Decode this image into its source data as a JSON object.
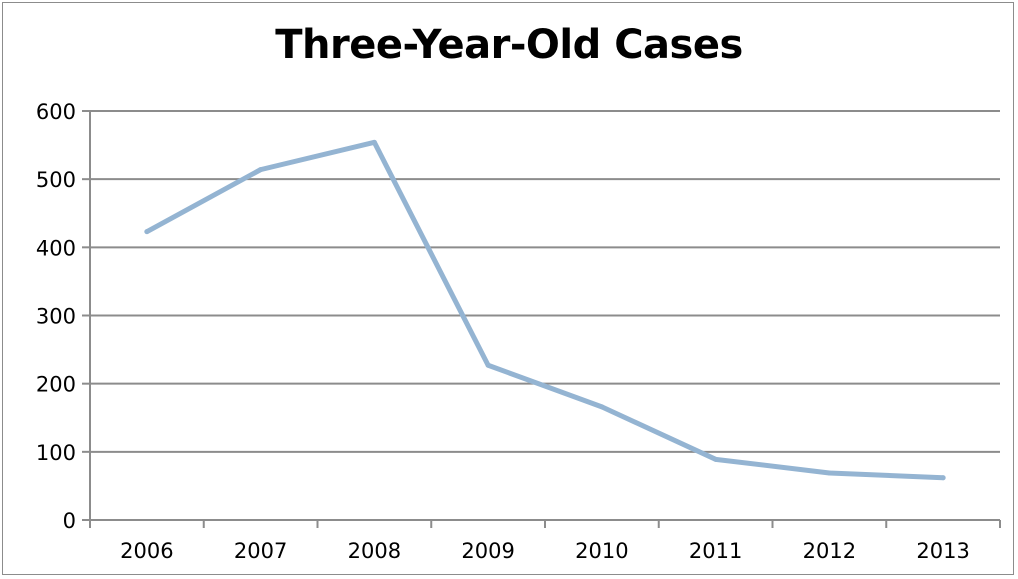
{
  "colors": {
    "series_line": "#94b4d2",
    "gridline": "#8c8c8c",
    "axis": "#8c8c8c"
  },
  "chart_data": {
    "type": "line",
    "title": "Three-Year-Old Cases",
    "xlabel": "",
    "ylabel": "",
    "categories": [
      "2006",
      "2007",
      "2008",
      "2009",
      "2010",
      "2011",
      "2012",
      "2013"
    ],
    "series": [
      {
        "values": [
          423,
          514,
          554,
          227,
          166,
          89,
          69,
          62
        ]
      }
    ],
    "ylim": [
      0,
      600
    ],
    "yticks": [
      0,
      100,
      200,
      300,
      400,
      500,
      600
    ],
    "grid": true,
    "legend": "none"
  }
}
